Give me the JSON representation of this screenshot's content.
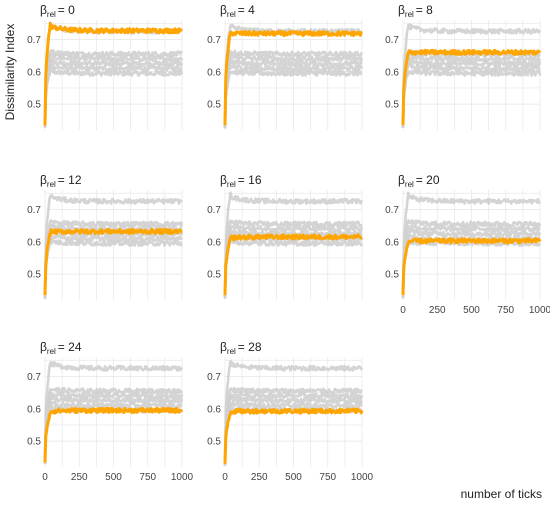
{
  "chart_data": {
    "type": "line",
    "ylabel": "Dissimilarity Index",
    "xlabel": "number of ticks",
    "xlim": [
      0,
      1000
    ],
    "ylim": [
      0.42,
      0.76
    ],
    "x_ticks": [
      0,
      250,
      500,
      750,
      1000
    ],
    "y_ticks": [
      0.5,
      0.6,
      0.7
    ],
    "grid": true,
    "gray_series_levels": [
      0.595,
      0.61,
      0.625,
      0.64,
      0.655,
      0.725
    ],
    "panels": [
      {
        "title_symbol": "β",
        "title_sub": "rel",
        "title_value": "= 0",
        "highlight_level": 0.727,
        "highlight_peak": 0.75
      },
      {
        "title_symbol": "β",
        "title_sub": "rel",
        "title_value": "= 4",
        "highlight_level": 0.718,
        "highlight_peak": 0.72
      },
      {
        "title_symbol": "β",
        "title_sub": "rel",
        "title_value": "= 8",
        "highlight_level": 0.66,
        "highlight_peak": 0.66
      },
      {
        "title_symbol": "β",
        "title_sub": "rel",
        "title_value": "= 12",
        "highlight_level": 0.632,
        "highlight_peak": 0.63
      },
      {
        "title_symbol": "β",
        "title_sub": "rel",
        "title_value": "= 16",
        "highlight_level": 0.615,
        "highlight_peak": 0.61
      },
      {
        "title_symbol": "β",
        "title_sub": "rel",
        "title_value": "= 20",
        "highlight_level": 0.603,
        "highlight_peak": 0.6
      },
      {
        "title_symbol": "β",
        "title_sub": "rel",
        "title_value": "= 24",
        "highlight_level": 0.595,
        "highlight_peak": 0.59
      },
      {
        "title_symbol": "β",
        "title_sub": "rel",
        "title_value": "= 28",
        "highlight_level": 0.593,
        "highlight_peak": 0.59
      }
    ]
  },
  "colors": {
    "highlight": "#ffa500",
    "background_series": "#cfcfcf",
    "grid": "#e6e6e6"
  }
}
